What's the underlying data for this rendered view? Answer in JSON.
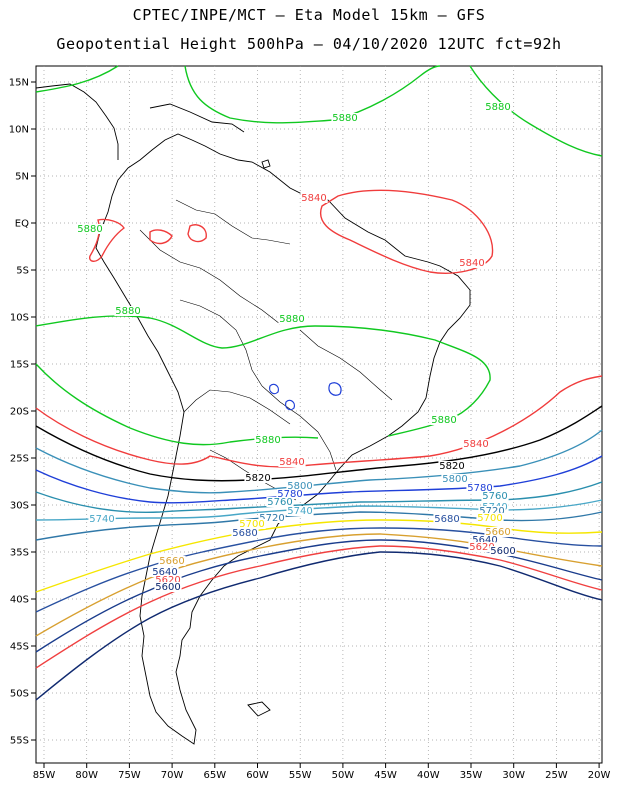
{
  "title_line1": "CPTEC/INPE/MCT –  Eta Model 15km – GFS",
  "title_line2": "Geopotential Height 500hPa – 04/10/2020 12UTC fct=92h",
  "colors": {
    "5880": "#10c820",
    "5840": "#f03c3c",
    "5820": "#000000",
    "5800": "#3a90b8",
    "5780": "#1f3fd8",
    "5760": "#2a8fae",
    "5740": "#48a7c7",
    "5720": "#3078a8",
    "5700": "#f5e600",
    "5680": "#2850a0",
    "5660": "#d8a030",
    "5640": "#1a3c8c",
    "5620": "#f04040",
    "5600": "#102a70"
  },
  "lon_ticks": [
    "85W",
    "80W",
    "75W",
    "70W",
    "65W",
    "60W",
    "55W",
    "50W",
    "45W",
    "40W",
    "35W",
    "30W",
    "25W",
    "20W"
  ],
  "lat_ticks": [
    "15N",
    "10N",
    "5N",
    "EQ",
    "5S",
    "10S",
    "15S",
    "20S",
    "25S",
    "30S",
    "35S",
    "40S",
    "45S",
    "50S",
    "55S"
  ],
  "contour_labels": [
    {
      "text": "5880",
      "level": "5880"
    },
    {
      "text": "5880",
      "level": "5880"
    },
    {
      "text": "5880",
      "level": "5880"
    },
    {
      "text": "5880",
      "level": "5880"
    },
    {
      "text": "5880",
      "level": "5880"
    },
    {
      "text": "5880",
      "level": "5880"
    },
    {
      "text": "5880",
      "level": "5880"
    },
    {
      "text": "5840",
      "level": "5840"
    },
    {
      "text": "5840",
      "level": "5840"
    },
    {
      "text": "5840",
      "level": "5840"
    },
    {
      "text": "5840",
      "level": "5840"
    },
    {
      "text": "5820",
      "level": "5820"
    },
    {
      "text": "5820",
      "level": "5820"
    },
    {
      "text": "5800",
      "level": "5800"
    },
    {
      "text": "5800",
      "level": "5800"
    },
    {
      "text": "5780",
      "level": "5780"
    },
    {
      "text": "5780",
      "level": "5780"
    },
    {
      "text": "5760",
      "level": "5760"
    },
    {
      "text": "5760",
      "level": "5760"
    },
    {
      "text": "5740",
      "level": "5740"
    },
    {
      "text": "5740",
      "level": "5740"
    },
    {
      "text": "5740",
      "level": "5740"
    },
    {
      "text": "5720",
      "level": "5720"
    },
    {
      "text": "5720",
      "level": "5720"
    },
    {
      "text": "5700",
      "level": "5700"
    },
    {
      "text": "5700",
      "level": "5700"
    },
    {
      "text": "5680",
      "level": "5680"
    },
    {
      "text": "5680",
      "level": "5680"
    },
    {
      "text": "5660",
      "level": "5660"
    },
    {
      "text": "5660",
      "level": "5660"
    },
    {
      "text": "5640",
      "level": "5640"
    },
    {
      "text": "5640",
      "level": "5640"
    },
    {
      "text": "5620",
      "level": "5620"
    },
    {
      "text": "5620",
      "level": "5620"
    },
    {
      "text": "5600",
      "level": "5600"
    },
    {
      "text": "5600",
      "level": "5600"
    }
  ]
}
